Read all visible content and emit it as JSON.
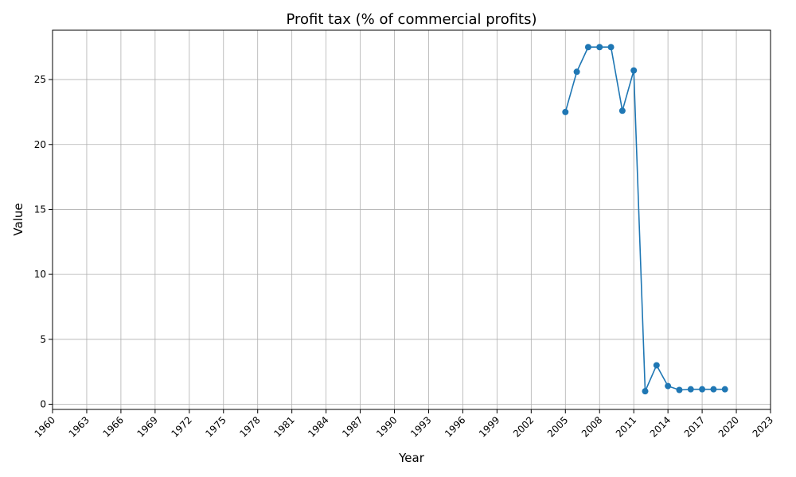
{
  "chart_data": {
    "type": "line",
    "title": "Profit tax (% of commercial profits)",
    "xlabel": "Year",
    "ylabel": "Value",
    "xlim": [
      1960,
      2023
    ],
    "ylim": [
      -0.4,
      28.8
    ],
    "x_ticks": [
      1960,
      1963,
      1966,
      1969,
      1972,
      1975,
      1978,
      1981,
      1984,
      1987,
      1990,
      1993,
      1996,
      1999,
      2002,
      2005,
      2008,
      2011,
      2014,
      2017,
      2020,
      2023
    ],
    "y_ticks": [
      0,
      5,
      10,
      15,
      20,
      25
    ],
    "grid": true,
    "colors": {
      "line": "#1f77b4",
      "grid": "#b0b0b0",
      "axis": "#000000"
    },
    "series": [
      {
        "x": [
          2005,
          2006,
          2007,
          2008,
          2009,
          2010,
          2011,
          2012,
          2013,
          2014,
          2015,
          2016,
          2017,
          2018,
          2019
        ],
        "values": [
          22.5,
          25.6,
          27.5,
          27.5,
          27.5,
          22.6,
          25.7,
          1.0,
          3.0,
          1.4,
          1.1,
          1.15,
          1.15,
          1.15,
          1.15
        ]
      }
    ]
  }
}
